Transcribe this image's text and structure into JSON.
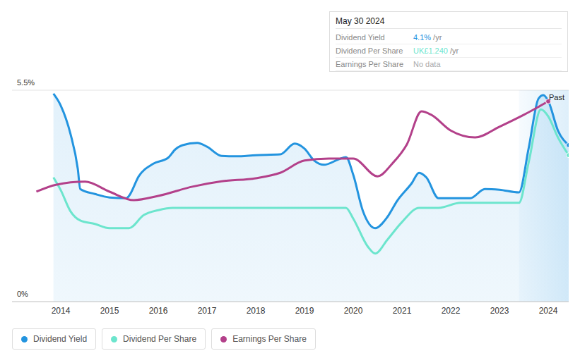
{
  "chart_data": {
    "type": "line",
    "xlim": [
      2013,
      2024.42
    ],
    "xticks": [
      2014,
      2015,
      2016,
      2017,
      2018,
      2019,
      2020,
      2021,
      2022,
      2023,
      2024
    ],
    "ylim": [
      0,
      5.5
    ],
    "yticks": [
      {
        "value": 0,
        "label": "0%"
      },
      {
        "value": 5.5,
        "label": "5.5%"
      }
    ],
    "grid": true,
    "series": [
      {
        "name": "Dividend Yield",
        "color": "#2394df",
        "type": "area",
        "x": [
          2013.85,
          2014.0,
          2014.2,
          2014.35,
          2014.4,
          2014.7,
          2015.0,
          2015.35,
          2015.4,
          2015.6,
          2015.9,
          2016.2,
          2016.35,
          2016.5,
          2016.8,
          2017.0,
          2017.3,
          2017.6,
          2018.0,
          2018.5,
          2018.8,
          2019.0,
          2019.2,
          2019.4,
          2019.7,
          2019.85,
          2020.0,
          2020.2,
          2020.45,
          2020.7,
          2020.9,
          2021.2,
          2021.35,
          2021.5,
          2021.75,
          2022.0,
          2022.4,
          2022.7,
          2023.0,
          2023.4,
          2023.6,
          2023.8,
          2023.9,
          2024.0,
          2024.2,
          2024.42
        ],
        "values": [
          5.41,
          5.1,
          4.36,
          3.45,
          2.93,
          2.8,
          2.71,
          2.69,
          2.75,
          3.26,
          3.59,
          3.74,
          3.96,
          4.07,
          4.13,
          4.03,
          3.79,
          3.78,
          3.81,
          3.83,
          4.11,
          3.98,
          3.67,
          3.56,
          3.7,
          3.76,
          3.3,
          2.35,
          1.91,
          2.2,
          2.62,
          3.08,
          3.35,
          3.23,
          2.69,
          2.69,
          2.69,
          2.93,
          2.91,
          2.84,
          4.0,
          5.28,
          5.37,
          5.22,
          4.45,
          4.07
        ]
      },
      {
        "name": "Dividend Per Share",
        "color": "#6ce5cd",
        "type": "line",
        "x": [
          2013.85,
          2014.0,
          2014.2,
          2014.4,
          2014.7,
          2015.0,
          2015.4,
          2015.7,
          2016.0,
          2016.3,
          2019.85,
          2020.0,
          2020.3,
          2020.45,
          2020.7,
          2021.0,
          2021.35,
          2021.75,
          2022.2,
          2023.4,
          2023.6,
          2023.85,
          2024.0,
          2024.2,
          2024.42
        ],
        "values": [
          3.23,
          2.9,
          2.35,
          2.11,
          2.02,
          1.91,
          1.91,
          2.25,
          2.38,
          2.44,
          2.44,
          2.16,
          1.43,
          1.25,
          1.61,
          2.07,
          2.44,
          2.44,
          2.57,
          2.57,
          3.63,
          5.0,
          4.82,
          4.27,
          3.81
        ]
      },
      {
        "name": "Earnings Per Share",
        "color": "#b3408a",
        "type": "line",
        "x": [
          2013.5,
          2013.9,
          2014.5,
          2015.0,
          2015.5,
          2016.0,
          2016.7,
          2017.3,
          2018.0,
          2018.5,
          2019.0,
          2019.5,
          2020.0,
          2020.5,
          2020.8,
          2021.1,
          2021.4,
          2021.6,
          2022.0,
          2022.5,
          2023.0,
          2023.5,
          2024.0
        ],
        "values": [
          2.86,
          3.04,
          3.12,
          2.86,
          2.64,
          2.75,
          2.99,
          3.13,
          3.21,
          3.35,
          3.67,
          3.72,
          3.72,
          3.26,
          3.59,
          4.09,
          4.95,
          4.86,
          4.45,
          4.27,
          4.55,
          4.86,
          5.21
        ]
      }
    ],
    "shaded_region": {
      "label": "Past",
      "x": [
        2023.4,
        2024.42
      ]
    },
    "info_box": {
      "title": "May 30 2024",
      "rows": [
        {
          "label": "Dividend Yield",
          "value": "4.1%",
          "unit": "/yr",
          "color": "#2394df"
        },
        {
          "label": "Dividend Per Share",
          "value": "UK£1.240",
          "unit": "/yr",
          "color": "#6ce5cd"
        },
        {
          "label": "Earnings Per Share",
          "value": "No data",
          "color": "#aaaaaa"
        }
      ]
    }
  }
}
